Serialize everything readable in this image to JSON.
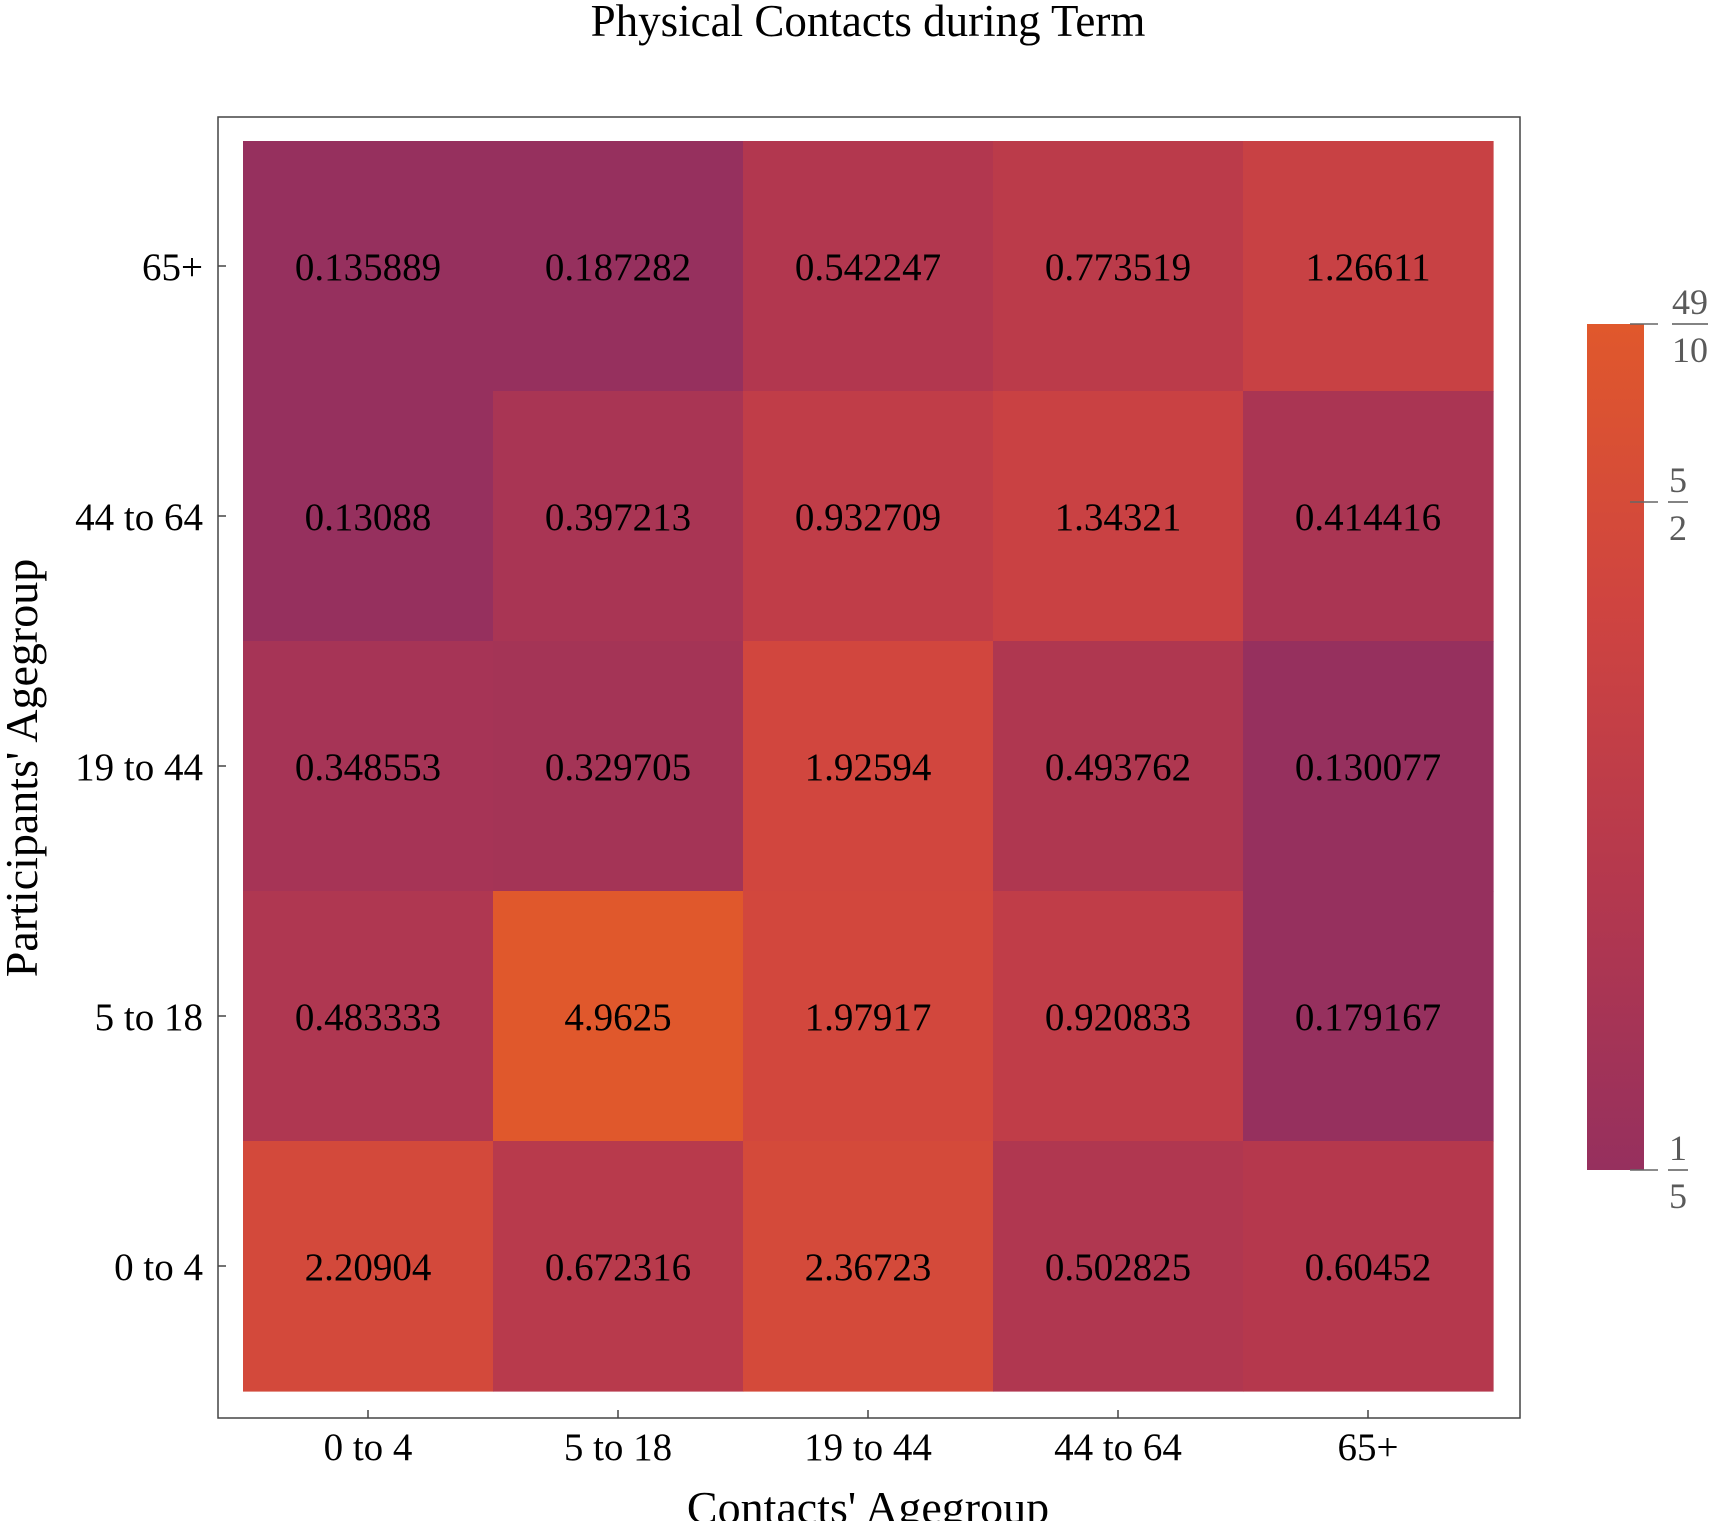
{
  "chart_data": {
    "type": "heatmap",
    "title": "Physical Contacts during Term",
    "xlabel": "Contacts' Agegroup",
    "ylabel": "Participants' Agegroup",
    "x_categories": [
      "0 to 4",
      "5 to 18",
      "19 to 44",
      "44 to 64",
      "65+"
    ],
    "y_categories_top_to_bottom": [
      "65+",
      "44 to 64",
      "19 to 44",
      "5 to 18",
      "0 to 4"
    ],
    "values_top_to_bottom": [
      [
        "0.135889",
        "0.187282",
        "0.542247",
        "0.773519",
        "1.26611"
      ],
      [
        "0.13088",
        "0.397213",
        "0.932709",
        "1.34321",
        "0.414416"
      ],
      [
        "0.348553",
        "0.329705",
        "1.92594",
        "0.493762",
        "0.130077"
      ],
      [
        "0.483333",
        "4.9625",
        "1.97917",
        "0.920833",
        "0.179167"
      ],
      [
        "2.20904",
        "0.672316",
        "2.36723",
        "0.502825",
        "0.60452"
      ]
    ],
    "colorbar": {
      "range": [
        0.2,
        4.9
      ],
      "scale": "log",
      "ticks": [
        {
          "value": 4.9,
          "numerator": "49",
          "denominator": "10"
        },
        {
          "value": 2.5,
          "numerator": "5",
          "denominator": "2"
        },
        {
          "value": 0.2,
          "numerator": "1",
          "denominator": "5"
        }
      ],
      "colors": [
        "#96305e",
        "#b4384e",
        "#cf4440",
        "#e0582c"
      ]
    }
  }
}
